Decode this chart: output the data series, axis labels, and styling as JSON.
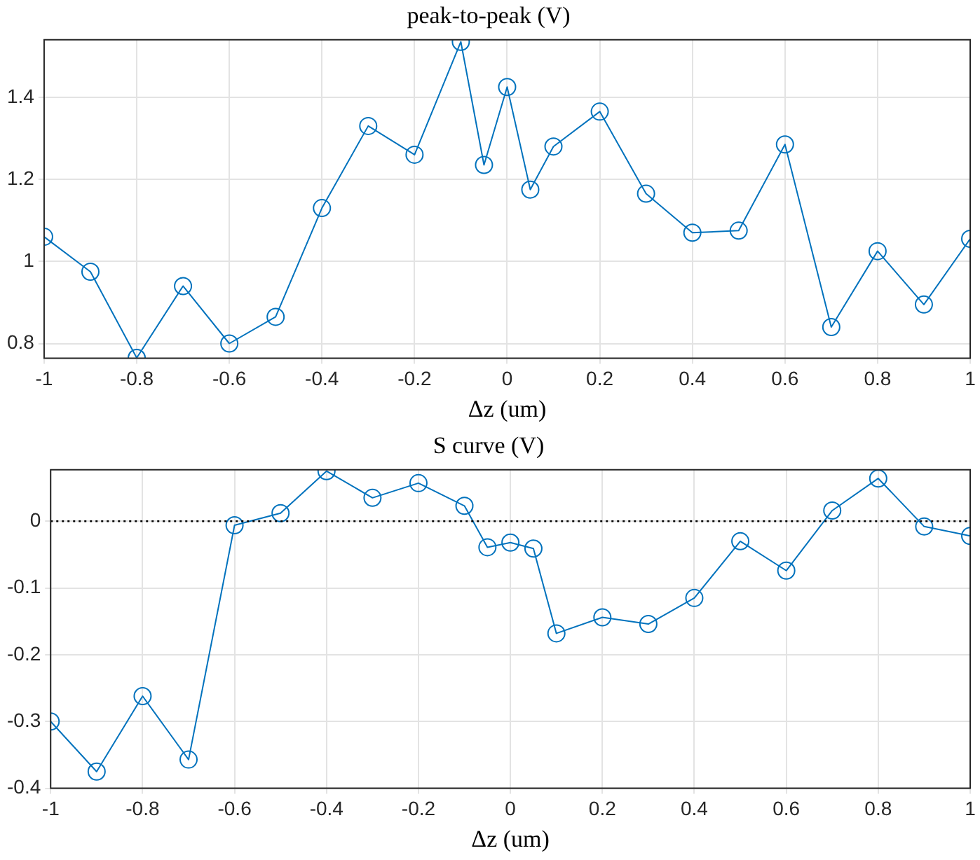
{
  "chart_data": [
    {
      "type": "line",
      "title": "peak-to-peak (V)",
      "xlabel": "Δz (um)",
      "x": [
        -1,
        -0.9,
        -0.8,
        -0.7,
        -0.6,
        -0.5,
        -0.4,
        -0.3,
        -0.2,
        -0.1,
        -0.05,
        0,
        0.05,
        0.1,
        0.2,
        0.3,
        0.4,
        0.5,
        0.6,
        0.7,
        0.8,
        0.9,
        1
      ],
      "series": [
        {
          "color": "#0072bd",
          "values": [
            1.06,
            0.975,
            0.765,
            0.94,
            0.8,
            0.865,
            1.13,
            1.33,
            1.26,
            1.535,
            1.235,
            1.425,
            1.175,
            1.28,
            1.365,
            1.165,
            1.07,
            1.075,
            1.285,
            0.84,
            1.025,
            0.895,
            1.055
          ]
        }
      ],
      "xlim": [
        -1,
        1
      ],
      "xticks": [
        -1,
        -0.8,
        -0.6,
        -0.4,
        -0.2,
        0,
        0.2,
        0.4,
        0.6,
        0.8,
        1
      ],
      "ylim": [
        0.764,
        1.54
      ],
      "yticks": [
        0.8,
        1,
        1.2,
        1.4
      ],
      "grid": true,
      "legend": false,
      "marker": "circle",
      "line_style": "solid"
    },
    {
      "type": "line",
      "title": "S curve (V)",
      "xlabel": "Δz (um)",
      "x": [
        -1,
        -0.9,
        -0.8,
        -0.7,
        -0.6,
        -0.5,
        -0.4,
        -0.3,
        -0.2,
        -0.1,
        -0.05,
        0,
        0.05,
        0.1,
        0.2,
        0.3,
        0.4,
        0.5,
        0.6,
        0.7,
        0.8,
        0.9,
        1
      ],
      "series": [
        {
          "color": "#0072bd",
          "values": [
            -0.3,
            -0.375,
            -0.262,
            -0.357,
            -0.006,
            0.012,
            0.075,
            0.035,
            0.057,
            0.023,
            -0.039,
            -0.032,
            -0.041,
            -0.168,
            -0.144,
            -0.154,
            -0.115,
            -0.03,
            -0.074,
            0.016,
            0.064,
            -0.008,
            -0.022
          ]
        }
      ],
      "xlim": [
        -1,
        1
      ],
      "xticks": [
        -1,
        -0.8,
        -0.6,
        -0.4,
        -0.2,
        0,
        0.2,
        0.4,
        0.6,
        0.8,
        1
      ],
      "ylim": [
        -0.4,
        0.077
      ],
      "yticks": [
        -0.4,
        -0.3,
        -0.2,
        -0.1,
        0
      ],
      "grid": true,
      "legend": false,
      "marker": "circle",
      "line_style": "solid",
      "ref_lines": [
        {
          "axis": "y",
          "value": 0,
          "color": "#000000",
          "line_style": "dotted"
        }
      ]
    }
  ]
}
